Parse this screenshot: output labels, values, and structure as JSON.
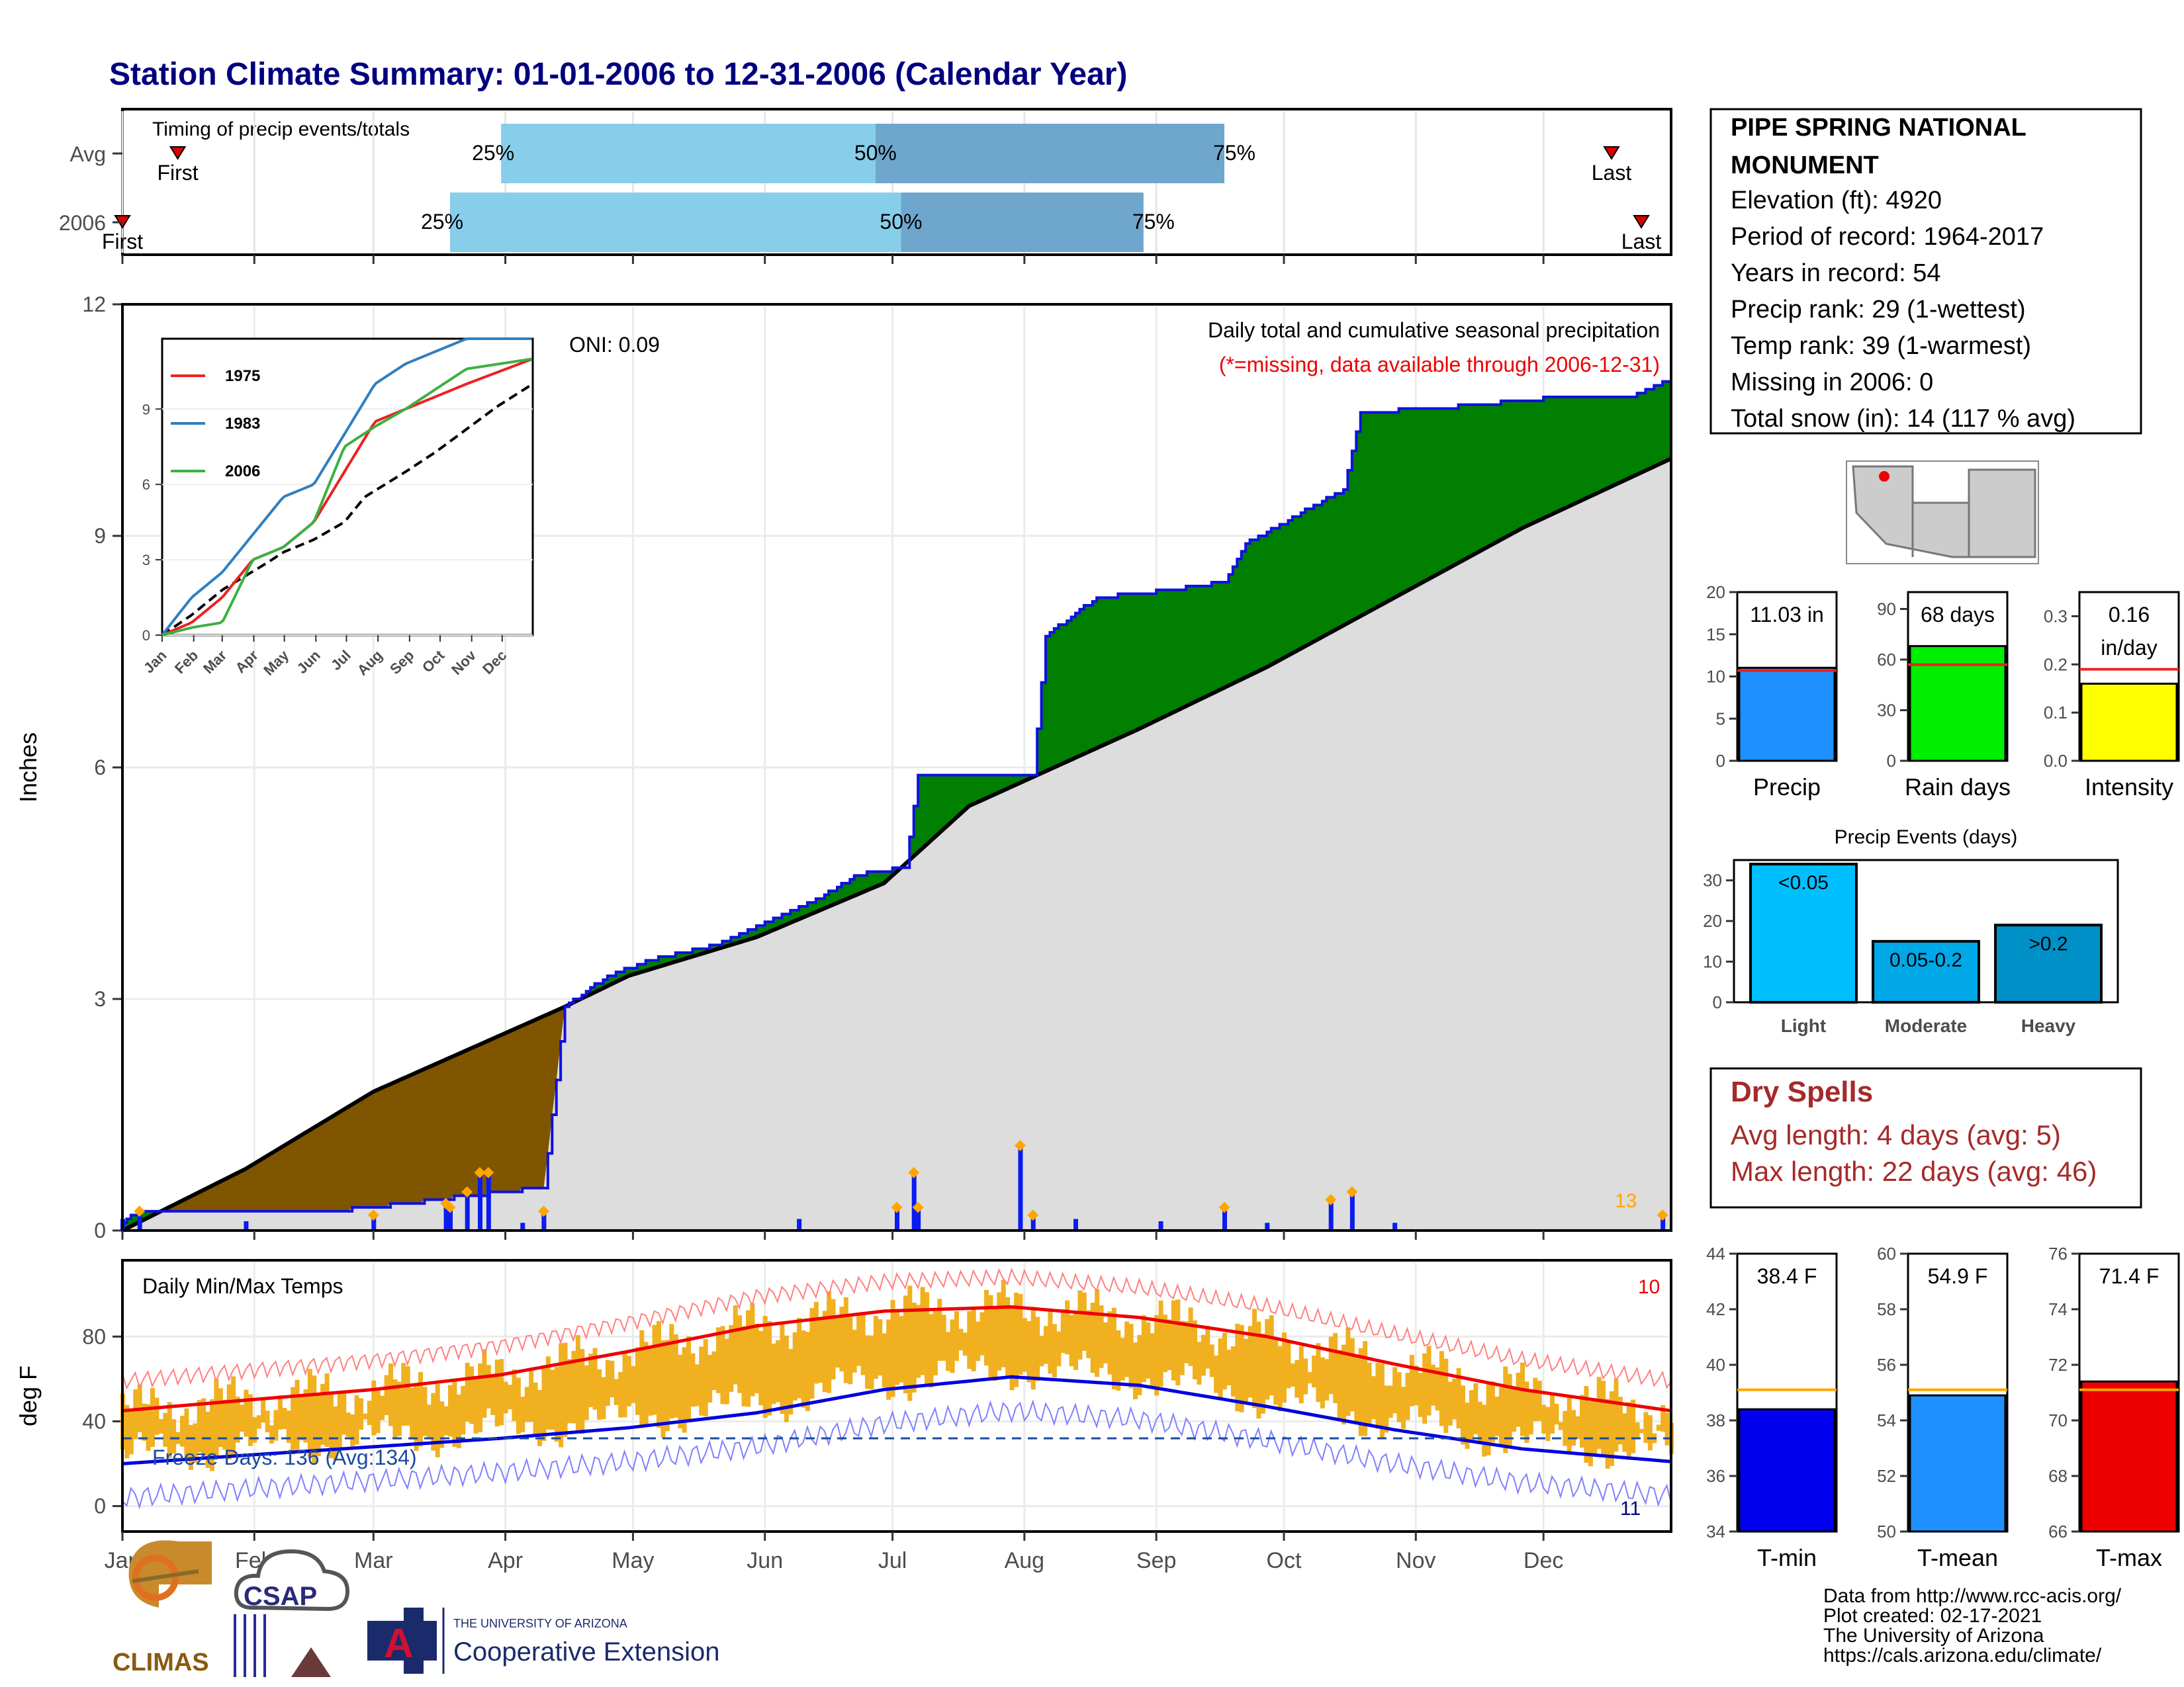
{
  "title": "Station Climate Summary: 01-01-2006 to 12-31-2006 (Calendar Year)",
  "months": [
    "Jan",
    "Feb",
    "Mar",
    "Apr",
    "May",
    "Jun",
    "Jul",
    "Aug",
    "Sep",
    "Oct",
    "Nov",
    "Dec"
  ],
  "colors": {
    "title": "#00007f",
    "precip_bar": "#0a1cf0",
    "above": "#007f00",
    "below": "#7f5500",
    "cum_fill": "#dddddd",
    "tmax": "#ee0000",
    "tmin": "#0000dd",
    "temp_bar": "#f0b020",
    "dry_spell_text": "#a52a2a"
  },
  "timing": {
    "label": "Timing of precip events/totals",
    "rows": [
      {
        "name": "Avg",
        "first": "First",
        "last": "Last",
        "first_doy": 14,
        "last_doy": 351,
        "q25": 90,
        "q50": 178,
        "q75": 260,
        "q25_label": "25%",
        "q50_label": "50%",
        "q75_label": "75%"
      },
      {
        "name": "2006",
        "first": "First",
        "last": "Last",
        "first_doy": 1,
        "last_doy": 358,
        "q25": 78,
        "q50": 184,
        "q75": 241,
        "q25_label": "25%",
        "q50_label": "50%",
        "q75_label": "75%"
      }
    ]
  },
  "station": {
    "name": "PIPE SPRING NATIONAL MONUMENT",
    "lines": [
      "Elevation (ft): 4920",
      "Period of record: 1964-2017",
      "Years in record: 54",
      "Precip rank: 29 (1-wettest)",
      "Temp rank: 39 (1-warmest)",
      "Missing in 2006: 0",
      "Total snow (in): 14 (117 % avg)"
    ]
  },
  "precip_panel": {
    "ylabel": "Inches",
    "yticks": [
      "0",
      "3",
      "6",
      "9",
      "12"
    ],
    "annot1": "Daily total and cumulative seasonal precipitation",
    "annot2": "(*=missing, data available through 2006-12-31)",
    "oni": "ONI: 0.09",
    "count_label": "13",
    "ylim": [
      0,
      12
    ]
  },
  "inset": {
    "yticks": [
      "0",
      "3",
      "6",
      "9"
    ],
    "months": [
      "Jan",
      "Feb",
      "Mar",
      "Apr",
      "May",
      "Jun",
      "Jul",
      "Aug",
      "Sep",
      "Oct",
      "Nov",
      "Dec"
    ],
    "legend": [
      {
        "name": "1975",
        "color": "#ee2020"
      },
      {
        "name": "1983",
        "color": "#2f7fc0"
      },
      {
        "name": "2006",
        "color": "#3cb043"
      }
    ]
  },
  "summary_bars": [
    {
      "label": "Precip",
      "value_text": "11.03 in",
      "value": 11.03,
      "avg": 10.7,
      "ylim": [
        0,
        20
      ],
      "ticks": [
        "0",
        "5",
        "10",
        "15",
        "20"
      ],
      "color": "#1e90ff",
      "line": "#ee2020"
    },
    {
      "label": "Rain days",
      "value_text": "68 days",
      "value": 68,
      "avg": 57,
      "ylim": [
        0,
        100
      ],
      "ticks": [
        "0",
        "30",
        "60",
        "90"
      ],
      "tickvals": [
        0,
        30,
        60,
        90
      ],
      "color": "#00ee00",
      "line": "#ee2020"
    },
    {
      "label": "Intensity",
      "value_text": "0.16",
      "value_text2": "in/day",
      "value": 0.16,
      "avg": 0.19,
      "ylim": [
        0,
        0.35
      ],
      "ticks": [
        "0.0",
        "0.1",
        "0.2",
        "0.3"
      ],
      "tickvals": [
        0,
        0.1,
        0.2,
        0.3
      ],
      "color": "#ffff00",
      "line": "#ee2020"
    }
  ],
  "precip_events": {
    "title": "Precip Events (days)",
    "categories": [
      "Light",
      "Moderate",
      "Heavy"
    ],
    "bar_labels": [
      "<0.05",
      "0.05-0.2",
      ">0.2"
    ],
    "values": [
      34,
      15,
      19
    ],
    "ylim": [
      0,
      35
    ],
    "ticks": [
      "0",
      "10",
      "20",
      "30"
    ],
    "colors": [
      "#00bfff",
      "#00a8e8",
      "#0090c8"
    ]
  },
  "dry_spells": {
    "title": "Dry Spells",
    "avg": "Avg length: 4 days (avg: 5)",
    "max": "Max length: 22 days (avg: 46)"
  },
  "temp_panel": {
    "ylabel": "deg F",
    "yticks": [
      "0",
      "40",
      "80"
    ],
    "title": "Daily Min/Max Temps",
    "freeze": "Freeze Days: 136 (Avg:134)",
    "hot_count": "10",
    "cold_count": "11"
  },
  "temp_bars": [
    {
      "label": "T-min",
      "value_text": "38.4 F",
      "value": 38.4,
      "avg": 39.1,
      "ylim": [
        34,
        44
      ],
      "ticks": [
        "34",
        "36",
        "38",
        "40",
        "42",
        "44"
      ],
      "color": "#0000ee",
      "line": "#ffa500"
    },
    {
      "label": "T-mean",
      "value_text": "54.9 F",
      "value": 54.9,
      "avg": 55.1,
      "ylim": [
        50,
        60
      ],
      "ticks": [
        "50",
        "52",
        "54",
        "56",
        "58",
        "60"
      ],
      "color": "#1e90ff",
      "line": "#ffa500"
    },
    {
      "label": "T-max",
      "value_text": "71.4 F",
      "value": 71.4,
      "avg": 71.1,
      "ylim": [
        66,
        76
      ],
      "ticks": [
        "66",
        "68",
        "70",
        "72",
        "74",
        "76"
      ],
      "color": "#ee0000",
      "line": "#ffa500"
    }
  ],
  "footer": {
    "lines": [
      "Data from http://www.rcc-acis.org/",
      "Plot created: 02-17-2021",
      "The University of Arizona",
      "https://cals.arizona.edu/climate/"
    ],
    "logo_climas": "CLIMAS",
    "logo_csap": "CSAP",
    "ua_small": "THE UNIVERSITY OF ARIZONA",
    "ua_big": "Cooperative Extension"
  },
  "chart_data": [
    {
      "type": "area",
      "title": "Daily total and cumulative seasonal precipitation",
      "ylabel": "Inches",
      "ylim": [
        0,
        12
      ],
      "x_unit": "day of year 2006",
      "cumulative_2006": [
        [
          1,
          0.1
        ],
        [
          5,
          0.25
        ],
        [
          50,
          0.25
        ],
        [
          60,
          0.3
        ],
        [
          90,
          0.5
        ],
        [
          100,
          0.55
        ],
        [
          105,
          2.9
        ],
        [
          115,
          3.3
        ],
        [
          125,
          3.5
        ],
        [
          140,
          3.7
        ],
        [
          165,
          4.3
        ],
        [
          173,
          4.6
        ],
        [
          185,
          4.7
        ],
        [
          188,
          5.9
        ],
        [
          215,
          5.9
        ],
        [
          218,
          7.7
        ],
        [
          230,
          8.2
        ],
        [
          248,
          8.3
        ],
        [
          260,
          8.4
        ],
        [
          265,
          8.9
        ],
        [
          288,
          9.6
        ],
        [
          292,
          10.6
        ],
        [
          310,
          10.65
        ],
        [
          340,
          10.8
        ],
        [
          355,
          10.8
        ],
        [
          365,
          11.03
        ]
      ],
      "cumulative_avg": [
        [
          1,
          0
        ],
        [
          30,
          0.8
        ],
        [
          60,
          1.8
        ],
        [
          105,
          2.9
        ],
        [
          120,
          3.3
        ],
        [
          150,
          3.8
        ],
        [
          180,
          4.5
        ],
        [
          200,
          5.5
        ],
        [
          240,
          6.5
        ],
        [
          270,
          7.3
        ],
        [
          300,
          8.2
        ],
        [
          330,
          9.1
        ],
        [
          365,
          10.0
        ]
      ],
      "daily_precip": [
        [
          1,
          0.15
        ],
        [
          5,
          0.25
        ],
        [
          30,
          0.12
        ],
        [
          60,
          0.2
        ],
        [
          77,
          0.35
        ],
        [
          78,
          0.3
        ],
        [
          82,
          0.5
        ],
        [
          85,
          0.75
        ],
        [
          87,
          0.75
        ],
        [
          95,
          0.1
        ],
        [
          100,
          0.25
        ],
        [
          160,
          0.15
        ],
        [
          183,
          0.3
        ],
        [
          187,
          0.75
        ],
        [
          188,
          0.3
        ],
        [
          212,
          1.1
        ],
        [
          215,
          0.2
        ],
        [
          225,
          0.15
        ],
        [
          245,
          0.12
        ],
        [
          260,
          0.3
        ],
        [
          270,
          0.1
        ],
        [
          285,
          0.4
        ],
        [
          290,
          0.5
        ],
        [
          300,
          0.1
        ],
        [
          363,
          0.2
        ]
      ]
    },
    {
      "type": "line",
      "title": "Daily Min/Max Temps",
      "ylabel": "deg F",
      "avg_tmax": [
        [
          1,
          45
        ],
        [
          30,
          50
        ],
        [
          60,
          55
        ],
        [
          90,
          62
        ],
        [
          120,
          73
        ],
        [
          150,
          85
        ],
        [
          180,
          92
        ],
        [
          210,
          94
        ],
        [
          240,
          89
        ],
        [
          270,
          80
        ],
        [
          300,
          67
        ],
        [
          330,
          55
        ],
        [
          365,
          45
        ]
      ],
      "avg_tmin": [
        [
          1,
          20
        ],
        [
          30,
          24
        ],
        [
          60,
          28
        ],
        [
          90,
          32
        ],
        [
          120,
          37
        ],
        [
          150,
          44
        ],
        [
          180,
          55
        ],
        [
          210,
          61
        ],
        [
          240,
          57
        ],
        [
          270,
          47
        ],
        [
          300,
          36
        ],
        [
          330,
          27
        ],
        [
          365,
          21
        ]
      ]
    },
    {
      "type": "line",
      "title": "inset cumulative",
      "series": [
        {
          "name": "1975",
          "values": [
            [
              1,
              0
            ],
            [
              30,
              0.5
            ],
            [
              60,
              1.5
            ],
            [
              90,
              3
            ],
            [
              120,
              3.5
            ],
            [
              150,
              4.5
            ],
            [
              180,
              6.5
            ],
            [
              210,
              8.5
            ],
            [
              240,
              9
            ],
            [
              300,
              10
            ],
            [
              365,
              11
            ]
          ]
        },
        {
          "name": "1983",
          "values": [
            [
              1,
              0
            ],
            [
              30,
              1.5
            ],
            [
              60,
              2.5
            ],
            [
              90,
              4
            ],
            [
              120,
              5.5
            ],
            [
              150,
              6
            ],
            [
              180,
              8
            ],
            [
              210,
              10
            ],
            [
              240,
              10.8
            ],
            [
              300,
              11.8
            ],
            [
              365,
              11.8
            ]
          ]
        },
        {
          "name": "2006",
          "values": [
            [
              1,
              0
            ],
            [
              30,
              0.3
            ],
            [
              60,
              0.5
            ],
            [
              90,
              3
            ],
            [
              120,
              3.5
            ],
            [
              150,
              4.5
            ],
            [
              180,
              7.5
            ],
            [
              210,
              8.3
            ],
            [
              240,
              9
            ],
            [
              300,
              10.6
            ],
            [
              365,
              11
            ]
          ]
        }
      ]
    }
  ]
}
